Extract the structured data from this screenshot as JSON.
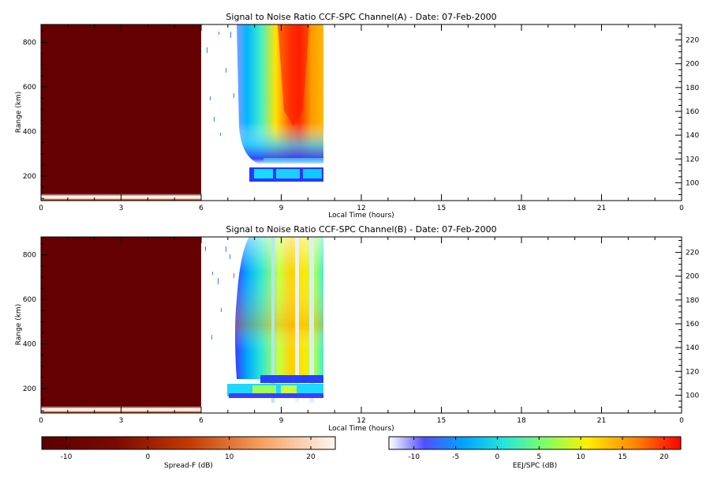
{
  "chart_data": [
    {
      "type": "heatmap",
      "title": "Signal to Noise Ratio CCF-SPC Channel(A) - Date: 07-Feb-2000",
      "xlabel": "Local Time (hours)",
      "ylabel": "Range (km)",
      "xlim": [
        0,
        24
      ],
      "ylim": [
        90,
        880
      ],
      "y2lim": [
        85,
        233
      ],
      "xticks": [
        "0",
        "3",
        "6",
        "9",
        "12",
        "15",
        "18",
        "21",
        "0"
      ],
      "yticks": [
        200,
        400,
        600,
        800
      ],
      "y2ticks": [
        100,
        120,
        140,
        160,
        180,
        200,
        220
      ],
      "spread_f_region": {
        "x": [
          0,
          6
        ],
        "value_db": -12
      },
      "bottom_trace": {
        "x": [
          0,
          6
        ],
        "range_km": 110,
        "value_db": 22
      },
      "ejp_region": {
        "x": [
          7.3,
          10.6
        ],
        "range_km": [
          180,
          880
        ],
        "peak_db": 20,
        "peak_x": 9.5,
        "peak_range_km": 650
      }
    },
    {
      "type": "heatmap",
      "title": "Signal to Noise Ratio CCF-SPC Channel(B) - Date: 07-Feb-2000",
      "xlabel": "Local Time (hours)",
      "ylabel": "Range (km)",
      "xlim": [
        0,
        24
      ],
      "ylim": [
        90,
        880
      ],
      "y2lim": [
        85,
        233
      ],
      "xticks": [
        "0",
        "3",
        "6",
        "9",
        "12",
        "15",
        "18",
        "21",
        "0"
      ],
      "yticks": [
        200,
        400,
        600,
        800
      ],
      "y2ticks": [
        100,
        120,
        140,
        160,
        180,
        200,
        220
      ],
      "spread_f_region": {
        "x": [
          0,
          6
        ],
        "value_db": -12
      },
      "bottom_trace": {
        "x": [
          0,
          6
        ],
        "range_km": 110,
        "value_db": 22
      },
      "ejp_region": {
        "x": [
          6.9,
          10.6
        ],
        "range_km": [
          160,
          880
        ],
        "peak_db": 14,
        "peak_x": 9.2,
        "peak_range_km": 480
      }
    }
  ],
  "colorbars": [
    {
      "label": "Spread-F (dB)",
      "range": [
        -13,
        23
      ],
      "ticks": [
        "-10",
        "0",
        "10",
        "20"
      ],
      "colors": [
        "#5a0000",
        "#a81d00",
        "#f07a1c",
        "#fdd9b4",
        "#fff6ee"
      ]
    },
    {
      "label": "EEJ/SPC (dB)",
      "range": [
        -13,
        22
      ],
      "ticks": [
        "-10",
        "-5",
        "0",
        "5",
        "10",
        "15",
        "20"
      ],
      "colors": [
        "#ffffff",
        "#3b3bff",
        "#00b7ff",
        "#3ef0c6",
        "#c6ff3a",
        "#ffe000",
        "#ff8a00",
        "#ff0000"
      ]
    }
  ]
}
